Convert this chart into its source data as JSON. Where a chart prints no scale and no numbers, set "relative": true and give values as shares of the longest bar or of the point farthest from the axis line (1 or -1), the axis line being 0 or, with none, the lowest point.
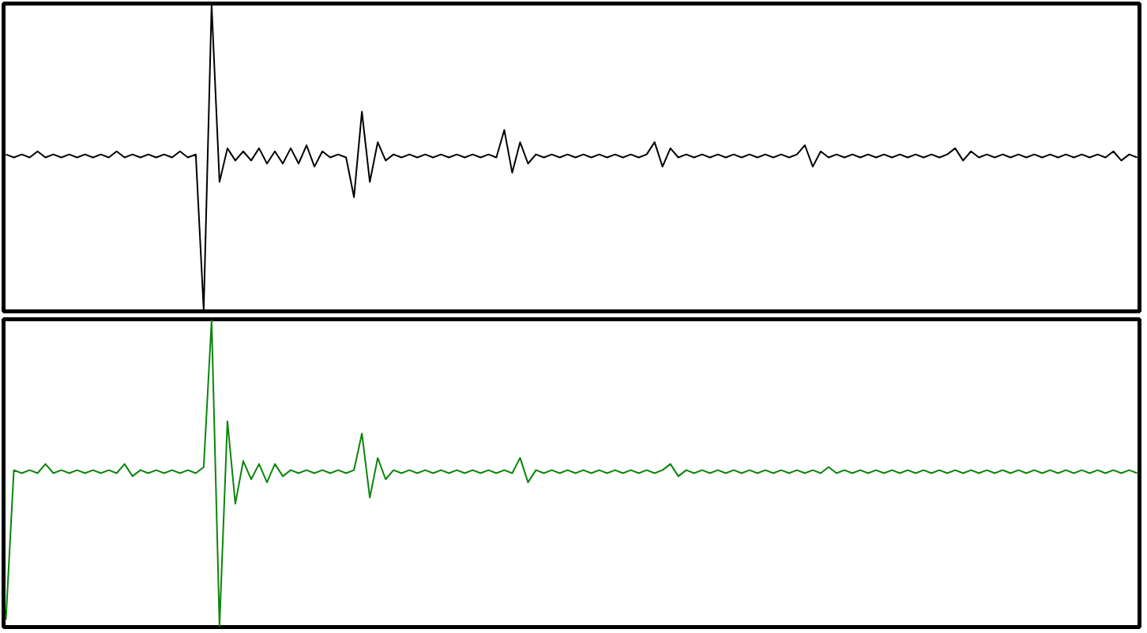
{
  "chart_data": [
    {
      "type": "line",
      "relative": true,
      "grid": false,
      "categories": [
        null,
        null,
        null,
        null,
        null,
        null,
        null,
        null,
        null,
        null,
        null,
        null,
        null,
        null,
        null,
        null,
        null,
        null,
        null,
        null,
        null,
        null,
        null,
        null,
        null,
        null,
        null,
        null,
        null,
        null,
        null,
        null,
        null,
        null,
        null,
        null,
        null,
        null,
        null,
        null,
        null,
        null,
        null,
        null,
        null,
        null,
        null,
        null,
        null,
        null,
        null,
        null,
        null,
        null,
        null,
        null,
        null,
        null,
        null,
        null,
        null,
        null,
        null,
        null,
        null,
        null,
        null,
        null,
        null,
        null,
        null,
        null,
        null,
        null,
        null,
        null,
        null,
        null,
        null,
        null,
        null,
        null,
        null,
        null,
        null,
        null,
        null,
        null,
        null,
        null,
        null,
        null,
        null,
        null,
        null,
        null,
        null,
        null,
        null,
        null,
        null,
        null,
        null,
        null,
        null,
        null,
        null,
        null,
        null,
        null,
        null,
        null,
        null,
        null,
        null,
        null,
        null,
        null,
        null,
        null,
        null,
        null,
        null,
        null,
        null,
        null,
        null,
        null,
        null,
        null,
        null,
        null,
        null,
        null,
        null,
        null,
        null,
        null,
        null,
        null,
        null,
        null,
        null,
        null
      ],
      "series": [
        {
          "color": "#000000",
          "values": [
            0.51,
            0.5,
            0.51,
            0.5,
            0.52,
            0.5,
            0.51,
            0.5,
            0.51,
            0.5,
            0.51,
            0.5,
            0.51,
            0.5,
            0.52,
            0.5,
            0.51,
            0.5,
            0.51,
            0.5,
            0.51,
            0.5,
            0.52,
            0.5,
            0.51,
            0,
            1,
            0.42,
            0.53,
            0.49,
            0.52,
            0.49,
            0.53,
            0.48,
            0.52,
            0.48,
            0.53,
            0.48,
            0.54,
            0.47,
            0.52,
            0.5,
            0.51,
            0.5,
            0.37,
            0.65,
            0.42,
            0.55,
            0.49,
            0.51,
            0.5,
            0.51,
            0.5,
            0.51,
            0.5,
            0.51,
            0.5,
            0.51,
            0.5,
            0.51,
            0.5,
            0.51,
            0.5,
            0.59,
            0.45,
            0.55,
            0.48,
            0.51,
            0.5,
            0.51,
            0.5,
            0.51,
            0.5,
            0.51,
            0.5,
            0.51,
            0.5,
            0.51,
            0.5,
            0.51,
            0.5,
            0.51,
            0.55,
            0.47,
            0.53,
            0.5,
            0.51,
            0.5,
            0.51,
            0.5,
            0.51,
            0.5,
            0.51,
            0.5,
            0.51,
            0.5,
            0.51,
            0.5,
            0.51,
            0.5,
            0.51,
            0.54,
            0.47,
            0.52,
            0.5,
            0.51,
            0.5,
            0.51,
            0.5,
            0.51,
            0.5,
            0.51,
            0.5,
            0.51,
            0.5,
            0.51,
            0.5,
            0.51,
            0.5,
            0.51,
            0.53,
            0.49,
            0.52,
            0.5,
            0.51,
            0.5,
            0.51,
            0.5,
            0.51,
            0.5,
            0.51,
            0.5,
            0.51,
            0.5,
            0.51,
            0.5,
            0.51,
            0.5,
            0.51,
            0.5,
            0.52,
            0.49,
            0.51,
            0.5
          ]
        }
      ]
    },
    {
      "type": "line",
      "relative": true,
      "grid": false,
      "categories": [
        null,
        null,
        null,
        null,
        null,
        null,
        null,
        null,
        null,
        null,
        null,
        null,
        null,
        null,
        null,
        null,
        null,
        null,
        null,
        null,
        null,
        null,
        null,
        null,
        null,
        null,
        null,
        null,
        null,
        null,
        null,
        null,
        null,
        null,
        null,
        null,
        null,
        null,
        null,
        null,
        null,
        null,
        null,
        null,
        null,
        null,
        null,
        null,
        null,
        null,
        null,
        null,
        null,
        null,
        null,
        null,
        null,
        null,
        null,
        null,
        null,
        null,
        null,
        null,
        null,
        null,
        null,
        null,
        null,
        null,
        null,
        null,
        null,
        null,
        null,
        null,
        null,
        null,
        null,
        null,
        null,
        null,
        null,
        null,
        null,
        null,
        null,
        null,
        null,
        null,
        null,
        null,
        null,
        null,
        null,
        null,
        null,
        null,
        null,
        null,
        null,
        null,
        null,
        null,
        null,
        null,
        null,
        null,
        null,
        null,
        null,
        null,
        null,
        null,
        null,
        null,
        null,
        null,
        null,
        null,
        null,
        null,
        null,
        null,
        null,
        null,
        null,
        null,
        null,
        null,
        null,
        null,
        null,
        null,
        null,
        null,
        null,
        null,
        null,
        null,
        null,
        null,
        null,
        null
      ],
      "series": [
        {
          "color": "#0a850a",
          "values": [
            0.02,
            0.51,
            0.5,
            0.51,
            0.5,
            0.53,
            0.5,
            0.51,
            0.5,
            0.51,
            0.5,
            0.51,
            0.5,
            0.51,
            0.5,
            0.53,
            0.49,
            0.51,
            0.5,
            0.51,
            0.5,
            0.51,
            0.5,
            0.51,
            0.5,
            0.52,
            1,
            0,
            0.67,
            0.4,
            0.54,
            0.48,
            0.53,
            0.47,
            0.53,
            0.49,
            0.51,
            0.5,
            0.51,
            0.5,
            0.51,
            0.5,
            0.51,
            0.5,
            0.51,
            0.63,
            0.42,
            0.55,
            0.48,
            0.51,
            0.5,
            0.51,
            0.5,
            0.51,
            0.5,
            0.51,
            0.5,
            0.51,
            0.5,
            0.51,
            0.5,
            0.51,
            0.5,
            0.51,
            0.5,
            0.55,
            0.47,
            0.51,
            0.5,
            0.51,
            0.5,
            0.51,
            0.5,
            0.51,
            0.5,
            0.51,
            0.5,
            0.51,
            0.5,
            0.51,
            0.5,
            0.51,
            0.5,
            0.51,
            0.53,
            0.49,
            0.51,
            0.5,
            0.51,
            0.5,
            0.51,
            0.5,
            0.51,
            0.5,
            0.51,
            0.5,
            0.51,
            0.5,
            0.51,
            0.5,
            0.51,
            0.5,
            0.51,
            0.5,
            0.52,
            0.5,
            0.51,
            0.5,
            0.51,
            0.5,
            0.51,
            0.5,
            0.51,
            0.5,
            0.51,
            0.5,
            0.51,
            0.5,
            0.51,
            0.5,
            0.51,
            0.5,
            0.51,
            0.5,
            0.51,
            0.5,
            0.51,
            0.5,
            0.51,
            0.5,
            0.51,
            0.5,
            0.51,
            0.5,
            0.51,
            0.5,
            0.51,
            0.5,
            0.51,
            0.5,
            0.51,
            0.5,
            0.51,
            0.5
          ]
        }
      ]
    }
  ]
}
